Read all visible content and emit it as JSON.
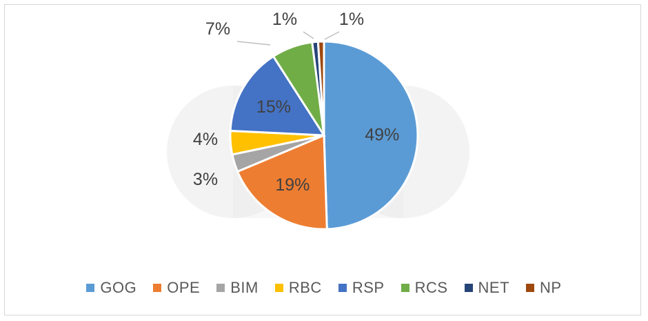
{
  "chart_data": {
    "type": "pie",
    "categories": [
      "GOG",
      "OPE",
      "BIM",
      "RBC",
      "RSP",
      "RCS",
      "NET",
      "NP"
    ],
    "values": [
      49,
      19,
      3,
      4,
      15,
      7,
      1,
      1
    ],
    "labels": [
      "49%",
      "19%",
      "3%",
      "4%",
      "15%",
      "7%",
      "1%",
      "1%"
    ],
    "colors": [
      "#5B9BD5",
      "#ED7D31",
      "#A5A5A5",
      "#FFC000",
      "#4472C4",
      "#70AD47",
      "#264478",
      "#9E480E"
    ],
    "legend_position": "bottom"
  }
}
